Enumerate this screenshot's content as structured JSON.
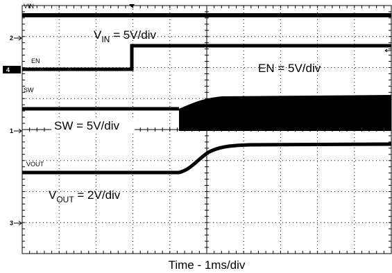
{
  "screen": {
    "channels": [
      {
        "label": "VIN"
      },
      {
        "label": "EN"
      },
      {
        "label": "SW"
      },
      {
        "label": "VOUT"
      }
    ],
    "markers": [
      "2",
      "4",
      "1",
      "3"
    ],
    "annotations": [
      {
        "base": "V",
        "sub": "IN",
        "rest": " = 5V/div"
      },
      {
        "base": "EN = 5V/div"
      },
      {
        "base": "SW = 5V/div"
      },
      {
        "base": "V",
        "sub": "OUT",
        "rest": " = 2V/div"
      }
    ],
    "time_label": "Time - 1ms/div"
  }
}
